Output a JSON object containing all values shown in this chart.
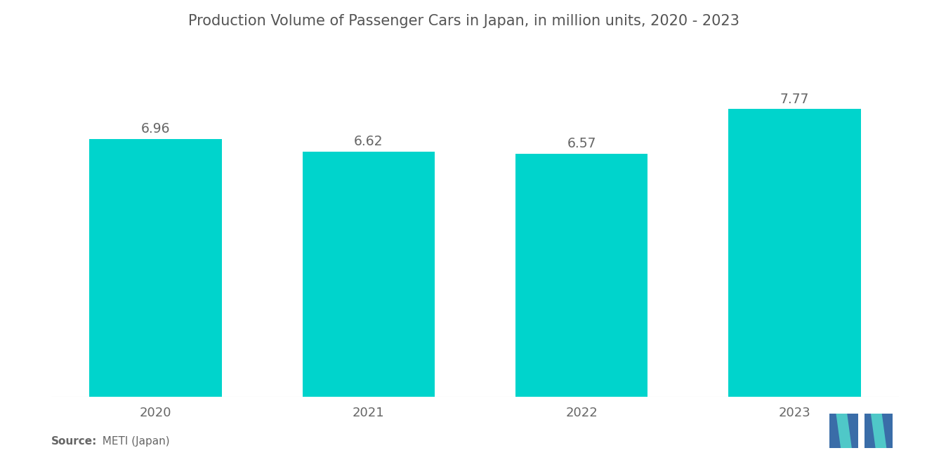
{
  "title": "Production Volume of Passenger Cars in Japan, in million units, 2020 - 2023",
  "categories": [
    "2020",
    "2021",
    "2022",
    "2023"
  ],
  "values": [
    6.96,
    6.62,
    6.57,
    7.77
  ],
  "bar_color": "#00D4CC",
  "background_color": "#ffffff",
  "title_fontsize": 15,
  "label_fontsize": 13.5,
  "tick_fontsize": 13,
  "source_bold": "Source:",
  "source_normal": "  METI (Japan)",
  "ylim": [
    0,
    9.2
  ],
  "bar_width": 0.62,
  "logo_blue": "#3A6DA8",
  "logo_teal": "#4FC8C8"
}
